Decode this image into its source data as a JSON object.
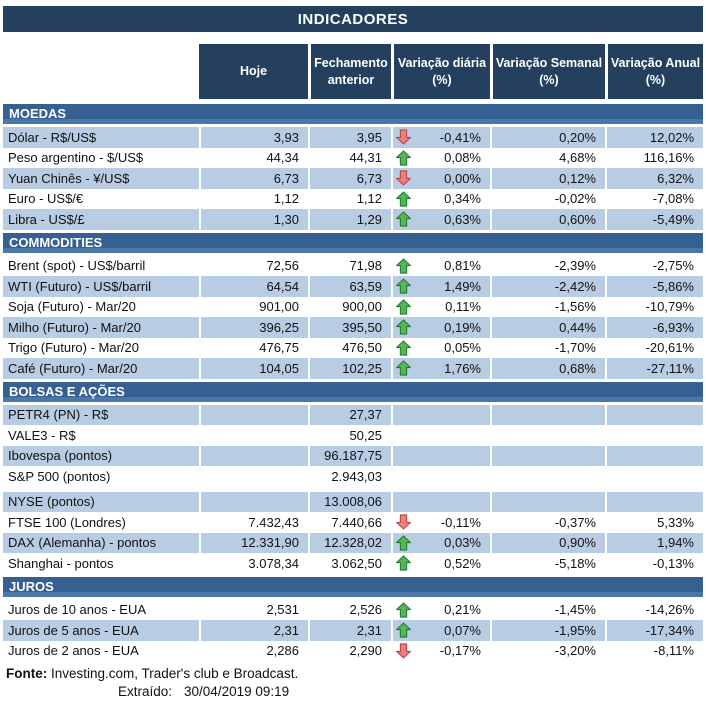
{
  "title": "INDICADORES",
  "columns": [
    "Hoje",
    "Fechamento anterior",
    "Variação diária (%)",
    "Variação Semanal (%)",
    "Variação Anual (%)"
  ],
  "colors": {
    "title_bar": "#24405E",
    "section_bar": "#366092",
    "row_stripe": "#B8CCE4",
    "arrow_up_fill": "#57B457",
    "arrow_up_stroke": "#1E7B2E",
    "arrow_down_fill": "#E98080",
    "arrow_down_stroke": "#BF4343"
  },
  "icons": {
    "up": "arrow-up-icon",
    "down": "arrow-down-icon"
  },
  "sections": [
    {
      "name": "MOEDAS",
      "shaded_first": true,
      "rows": [
        {
          "label": "Dólar - R$/US$",
          "hoje": "3,93",
          "fechamento": "3,95",
          "arrow": "down",
          "diaria": "-0,41%",
          "semanal": "0,20%",
          "anual": "12,02%"
        },
        {
          "label": "Peso argentino - $/US$",
          "hoje": "44,34",
          "fechamento": "44,31",
          "arrow": "up",
          "diaria": "0,08%",
          "semanal": "4,68%",
          "anual": "116,16%"
        },
        {
          "label": "Yuan Chinês - ¥/US$",
          "hoje": "6,73",
          "fechamento": "6,73",
          "arrow": "down",
          "diaria": "0,00%",
          "semanal": "0,12%",
          "anual": "6,32%"
        },
        {
          "label": "Euro - US$/€",
          "hoje": "1,12",
          "fechamento": "1,12",
          "arrow": "up",
          "diaria": "0,34%",
          "semanal": "-0,02%",
          "anual": "-7,08%"
        },
        {
          "label": "Libra - US$/£",
          "hoje": "1,30",
          "fechamento": "1,29",
          "arrow": "up",
          "diaria": "0,63%",
          "semanal": "0,60%",
          "anual": "-5,49%"
        }
      ]
    },
    {
      "name": "COMMODITIES",
      "shaded_first": false,
      "rows": [
        {
          "label": "Brent (spot) - US$/barril",
          "hoje": "72,56",
          "fechamento": "71,98",
          "arrow": "up",
          "diaria": "0,81%",
          "semanal": "-2,39%",
          "anual": "-2,75%"
        },
        {
          "label": "WTI (Futuro) - US$/barril",
          "hoje": "64,54",
          "fechamento": "63,59",
          "arrow": "up",
          "diaria": "1,49%",
          "semanal": "-2,42%",
          "anual": "-5,86%"
        },
        {
          "label": "Soja (Futuro) - Mar/20",
          "hoje": "901,00",
          "fechamento": "900,00",
          "arrow": "up",
          "diaria": "0,11%",
          "semanal": "-1,56%",
          "anual": "-10,79%"
        },
        {
          "label": "Milho (Futuro) - Mar/20",
          "hoje": "396,25",
          "fechamento": "395,50",
          "arrow": "up",
          "diaria": "0,19%",
          "semanal": "0,44%",
          "anual": "-6,93%"
        },
        {
          "label": "Trigo (Futuro) - Mar/20",
          "hoje": "476,75",
          "fechamento": "476,50",
          "arrow": "up",
          "diaria": "0,05%",
          "semanal": "-1,70%",
          "anual": "-20,61%"
        },
        {
          "label": "Café (Futuro) - Mar/20",
          "hoje": "104,05",
          "fechamento": "102,25",
          "arrow": "up",
          "diaria": "1,76%",
          "semanal": "0,68%",
          "anual": "-27,11%"
        }
      ]
    },
    {
      "name": "BOLSAS E AÇÕES",
      "shaded_first": true,
      "rows": [
        {
          "label": "PETR4 (PN) - R$",
          "hoje": "",
          "fechamento": "27,37",
          "arrow": "none",
          "diaria": "",
          "semanal": "",
          "anual": ""
        },
        {
          "label": "VALE3 - R$",
          "hoje": "",
          "fechamento": "50,25",
          "arrow": "none",
          "diaria": "",
          "semanal": "",
          "anual": ""
        },
        {
          "label": "Ibovespa (pontos)",
          "hoje": "",
          "fechamento": "96.187,75",
          "arrow": "none",
          "diaria": "",
          "semanal": "",
          "anual": ""
        },
        {
          "label": "S&P 500 (pontos)",
          "hoje": "",
          "fechamento": "2.943,03",
          "arrow": "none",
          "diaria": "",
          "semanal": "",
          "anual": ""
        },
        {
          "label": "NYSE (pontos)",
          "hoje": "",
          "fechamento": "13.008,06",
          "arrow": "none",
          "diaria": "",
          "semanal": "",
          "anual": "",
          "spacer_before": true
        },
        {
          "label": "FTSE 100 (Londres)",
          "hoje": "7.432,43",
          "fechamento": "7.440,66",
          "arrow": "down",
          "diaria": "-0,11%",
          "semanal": "-0,37%",
          "anual": "5,33%"
        },
        {
          "label": "DAX (Alemanha) - pontos",
          "hoje": "12.331,90",
          "fechamento": "12.328,02",
          "arrow": "up",
          "diaria": "0,03%",
          "semanal": "0,90%",
          "anual": "1,94%"
        },
        {
          "label": "Shanghai - pontos",
          "hoje": "3.078,34",
          "fechamento": "3.062,50",
          "arrow": "up",
          "diaria": "0,52%",
          "semanal": "-5,18%",
          "anual": "-0,13%"
        }
      ]
    },
    {
      "name": "JUROS",
      "shaded_first": false,
      "rows": [
        {
          "label": "Juros de 10 anos - EUA",
          "hoje": "2,531",
          "fechamento": "2,526",
          "arrow": "up",
          "diaria": "0,21%",
          "semanal": "-1,45%",
          "anual": "-14,26%"
        },
        {
          "label": "Juros de 5 anos - EUA",
          "hoje": "2,31",
          "fechamento": "2,31",
          "arrow": "up",
          "diaria": "0,07%",
          "semanal": "-1,95%",
          "anual": "-17,34%"
        },
        {
          "label": "Juros de 2 anos - EUA",
          "hoje": "2,286",
          "fechamento": "2,290",
          "arrow": "down",
          "diaria": "-0,17%",
          "semanal": "-3,20%",
          "anual": "-8,11%"
        }
      ]
    }
  ],
  "footer": {
    "fonte_label": "Fonte:",
    "fonte_text": " Investing.com, Trader's club e Broadcast.",
    "extraido_label": "Extraído:",
    "extraido_value": "30/04/2019 09:19"
  }
}
